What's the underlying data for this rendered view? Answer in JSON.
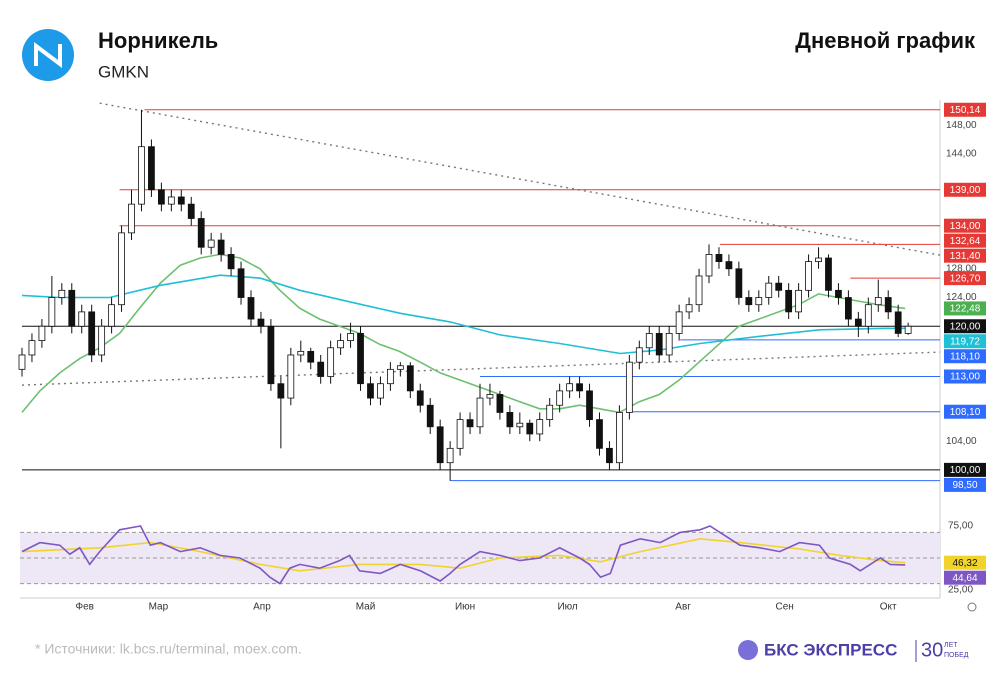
{
  "header": {
    "title": "Норникель",
    "ticker": "GMKN",
    "subtitle": "Дневной график"
  },
  "footer": {
    "source": "*  Источники: lk.bcs.ru/terminal, moex.com.",
    "brand": "БКС ЭКСПРЕСС",
    "badge_top": "ЛЕТ",
    "badge_bottom": "ПОБЕД",
    "badge_num": "30"
  },
  "chart_data": [
    {
      "type": "candlestick",
      "xlim": [
        -0.2,
        92.2
      ],
      "ylim": [
        97.2,
        151.5
      ],
      "yticks": [
        {
          "value": 148,
          "label": "148,00"
        },
        {
          "value": 144,
          "label": "144,00"
        },
        {
          "value": 128,
          "label": "128,00"
        },
        {
          "value": 124,
          "label": "124,00"
        },
        {
          "value": 104,
          "label": "104,00"
        }
      ],
      "ohlc": [
        [
          114,
          117,
          113,
          116
        ],
        [
          116,
          119,
          115,
          118
        ],
        [
          118,
          121,
          117,
          120
        ],
        [
          120,
          127,
          119,
          124
        ],
        [
          124,
          126,
          123,
          125
        ],
        [
          125,
          126,
          119,
          120
        ],
        [
          120,
          123,
          119,
          122
        ],
        [
          122,
          123,
          115,
          116
        ],
        [
          116,
          121,
          115,
          120
        ],
        [
          120,
          124,
          119,
          123
        ],
        [
          123,
          134,
          122,
          133
        ],
        [
          133,
          139,
          132,
          137
        ],
        [
          137,
          150.14,
          136,
          145
        ],
        [
          145,
          146,
          138,
          139
        ],
        [
          139,
          140,
          136,
          137
        ],
        [
          137,
          139,
          136,
          138
        ],
        [
          138,
          139,
          136,
          137
        ],
        [
          137,
          138,
          134,
          135
        ],
        [
          135,
          136,
          130,
          131
        ],
        [
          131,
          133,
          130,
          132
        ],
        [
          132,
          133,
          129,
          130
        ],
        [
          130,
          131,
          127,
          128
        ],
        [
          128,
          129,
          123,
          124
        ],
        [
          124,
          125,
          120,
          121
        ],
        [
          121,
          122,
          119,
          120
        ],
        [
          120,
          121,
          111,
          112
        ],
        [
          112,
          113,
          103,
          110
        ],
        [
          110,
          117,
          109,
          116
        ],
        [
          116,
          118,
          115,
          116.5
        ],
        [
          116.5,
          117,
          114,
          115
        ],
        [
          115,
          116,
          112,
          113
        ],
        [
          113,
          118,
          112,
          117
        ],
        [
          117,
          119,
          116,
          118
        ],
        [
          118,
          120.5,
          117,
          119
        ],
        [
          119,
          120,
          111,
          112
        ],
        [
          112,
          113,
          109,
          110
        ],
        [
          110,
          113,
          109,
          112
        ],
        [
          112,
          115,
          111,
          114
        ],
        [
          114,
          115,
          113,
          114.5
        ],
        [
          114.5,
          115,
          110,
          111
        ],
        [
          111,
          112,
          108,
          109
        ],
        [
          109,
          110,
          105,
          106
        ],
        [
          106,
          107,
          100,
          101
        ],
        [
          101,
          104,
          98.5,
          103
        ],
        [
          103,
          108,
          102,
          107
        ],
        [
          107,
          108,
          105,
          106
        ],
        [
          106,
          112,
          105,
          110
        ],
        [
          110,
          112,
          109,
          110.5
        ],
        [
          110.5,
          111,
          107,
          108
        ],
        [
          108,
          109,
          105,
          106
        ],
        [
          106,
          108,
          105,
          106.5
        ],
        [
          106.5,
          107,
          104,
          105
        ],
        [
          105,
          108,
          104,
          107
        ],
        [
          107,
          110,
          106,
          109
        ],
        [
          109,
          112,
          108,
          111
        ],
        [
          111,
          113,
          110,
          112
        ],
        [
          112,
          113,
          110,
          111
        ],
        [
          111,
          112,
          106,
          107
        ],
        [
          107,
          108,
          102,
          103
        ],
        [
          103,
          104,
          100,
          101
        ],
        [
          101,
          109,
          100,
          108
        ],
        [
          108,
          116,
          107,
          115
        ],
        [
          115,
          118,
          114,
          117
        ],
        [
          117,
          120,
          116,
          119
        ],
        [
          119,
          120,
          115,
          116
        ],
        [
          116,
          120,
          115,
          119
        ],
        [
          119,
          123,
          118,
          122
        ],
        [
          122,
          124,
          121,
          123
        ],
        [
          123,
          128,
          122,
          127
        ],
        [
          127,
          131.4,
          126,
          130
        ],
        [
          130,
          131,
          128,
          129
        ],
        [
          129,
          130,
          127,
          128
        ],
        [
          128,
          129,
          123,
          124
        ],
        [
          124,
          125,
          122,
          123
        ],
        [
          123,
          125,
          122,
          124
        ],
        [
          124,
          127,
          123,
          126
        ],
        [
          126,
          127,
          124,
          125
        ],
        [
          125,
          126,
          121,
          122
        ],
        [
          122,
          126,
          121,
          125
        ],
        [
          125,
          130,
          124,
          129
        ],
        [
          129,
          131,
          128,
          129.5
        ],
        [
          129.5,
          130,
          124,
          125
        ],
        [
          125,
          126,
          123,
          124
        ],
        [
          124,
          125,
          120,
          121
        ],
        [
          121,
          122,
          118.5,
          120
        ],
        [
          120,
          124,
          119,
          123
        ],
        [
          123,
          126.5,
          122,
          124
        ],
        [
          124,
          125,
          121,
          122
        ],
        [
          122,
          123,
          118.5,
          119
        ],
        [
          119,
          120.5,
          118.8,
          120
        ]
      ],
      "up_color": "#ffffff",
      "down_color": "#111111",
      "lines": [
        {
          "color": "#6cc070",
          "x": [
            0,
            1.8,
            3.8,
            5.8,
            7.8,
            9.8,
            11.8,
            13.9,
            15.9,
            17.9,
            19.9,
            21.9,
            23.9,
            25.9,
            27.9,
            29.9,
            31.9,
            33.9,
            35.9,
            37.9,
            40,
            42,
            44,
            46,
            48,
            50,
            52,
            54,
            56,
            58,
            60,
            62,
            64,
            66,
            68,
            70,
            72,
            74,
            76,
            78,
            80,
            82,
            84,
            86,
            88.7
          ],
          "values": [
            108,
            111,
            113.5,
            115.5,
            117,
            119,
            122.5,
            126,
            128.5,
            129.5,
            130,
            129.5,
            128,
            125,
            122.5,
            121,
            120,
            119,
            117.5,
            116.5,
            115,
            113.5,
            112.5,
            111.5,
            110.5,
            109.5,
            108.5,
            108.5,
            109,
            108.5,
            108,
            109.5,
            110.5,
            112.5,
            115,
            117.5,
            120,
            121,
            122,
            123,
            124.5,
            124,
            123.5,
            123,
            122.48
          ]
        },
        {
          "color": "#1fbfd6",
          "x": [
            0,
            3.8,
            8.8,
            13.9,
            19.9,
            23.9,
            27.9,
            32.9,
            38,
            43,
            48,
            54,
            60.1,
            64.1,
            68.1,
            74.1,
            80.1,
            86.2,
            88.7
          ],
          "values": [
            124.3,
            124,
            124,
            125.7,
            127.1,
            126.7,
            125,
            123.4,
            121.8,
            120.6,
            118.8,
            117.6,
            116.2,
            116.7,
            117.6,
            118.6,
            119.5,
            119.7,
            119.72
          ]
        }
      ],
      "trendlines": [
        {
          "x": [
            7.8,
            92.2
          ],
          "values": [
            151.06,
            129.9
          ]
        },
        {
          "x": [
            0,
            92.2
          ],
          "values": [
            111.8,
            116.4
          ]
        }
      ],
      "levels": [
        {
          "value": 150.14,
          "label": "150,14",
          "color": "#e53935",
          "from": 12.3
        },
        {
          "value": 139,
          "label": "139,00",
          "color": "#e53935",
          "from": 9.8
        },
        {
          "value": 134,
          "label": "134,00",
          "color": "#e53935",
          "from": 9.8
        },
        {
          "value": 132.64,
          "label": "132,64",
          "color": "#e53935"
        },
        {
          "value": 131.4,
          "label": "131,40",
          "color": "#e53935",
          "from": 70.1
        },
        {
          "value": 126.7,
          "label": "126,70",
          "color": "#e53935",
          "from": 83.2
        },
        {
          "value": 122.48,
          "label": "122,48",
          "color": "#4caf50"
        },
        {
          "value": 120,
          "label": "120,00",
          "color": "#111111",
          "from": 0
        },
        {
          "value": 119.72,
          "label": "119,72",
          "color": "#1fbfd6"
        },
        {
          "value": 118.1,
          "label": "118,10",
          "color": "#2f6bff",
          "from": 66.1
        },
        {
          "value": 113,
          "label": "113,00",
          "color": "#2f6bff",
          "from": 46
        },
        {
          "value": 108.1,
          "label": "108,10",
          "color": "#2f6bff",
          "from": 61.1
        },
        {
          "value": 100,
          "label": "100,00",
          "color": "#111111",
          "from": 0
        },
        {
          "value": 98.5,
          "label": "98,50",
          "color": "#2f6bff",
          "from": 43
        }
      ]
    },
    {
      "type": "line",
      "xlim": [
        -0.2,
        92.2
      ],
      "ylim": [
        18.75,
        87.5
      ],
      "yticks": [
        {
          "value": 75,
          "label": "75,00"
        },
        {
          "value": 25,
          "label": "25,00"
        }
      ],
      "band": [
        30,
        70
      ],
      "guides": [
        70,
        50,
        30
      ],
      "xticks": [
        {
          "value": 6.3,
          "label": "Фев"
        },
        {
          "value": 13.7,
          "label": "Мар"
        },
        {
          "value": 24.1,
          "label": "Апр"
        },
        {
          "value": 34.5,
          "label": "Май"
        },
        {
          "value": 44.5,
          "label": "Июн"
        },
        {
          "value": 54.8,
          "label": "Июл"
        },
        {
          "value": 66.4,
          "label": "Авг"
        },
        {
          "value": 76.6,
          "label": "Сен"
        },
        {
          "value": 87,
          "label": "Окт"
        }
      ],
      "series": [
        {
          "color": "#7e57c2",
          "value_label": "44,64",
          "x": [
            0,
            1.8,
            3.8,
            4.8,
            5.8,
            6.8,
            7.8,
            9.8,
            11.9,
            12.9,
            13.9,
            15.9,
            17.9,
            19.9,
            21.9,
            23.9,
            24.9,
            25.9,
            26.9,
            27.9,
            29.9,
            31.9,
            32.9,
            33.9,
            36,
            38,
            40,
            42,
            43,
            44,
            46,
            48,
            50,
            52,
            54,
            56,
            57,
            58.1,
            59.1,
            60.1,
            62.1,
            64.1,
            66.1,
            68.1,
            69.1,
            70.1,
            72.1,
            74.1,
            76.1,
            78.1,
            80.1,
            81.1,
            83.2,
            84.2,
            86.2,
            87.2,
            88.7
          ],
          "values": [
            55,
            62,
            60,
            53,
            58,
            45,
            55,
            72,
            75,
            60,
            62,
            55,
            58,
            52,
            50,
            42,
            35,
            30,
            42,
            45,
            42,
            48,
            52,
            40,
            38,
            45,
            40,
            32,
            38,
            45,
            55,
            52,
            48,
            50,
            58,
            50,
            45,
            35,
            38,
            60,
            65,
            62,
            70,
            72,
            75,
            70,
            60,
            58,
            55,
            62,
            60,
            50,
            45,
            40,
            50,
            45,
            44.64
          ]
        },
        {
          "color": "#f2d32b",
          "value_label": "46,32",
          "x": [
            0,
            7.8,
            12.9,
            17.9,
            23.9,
            27.9,
            33.9,
            40,
            44,
            48,
            54,
            58.1,
            62.1,
            68.1,
            72.1,
            78.1,
            82.2,
            86.2,
            88.7
          ],
          "values": [
            55,
            58,
            62,
            55,
            45,
            40,
            45,
            45,
            42,
            50,
            52,
            47,
            55,
            65,
            62,
            57,
            52,
            48,
            46.32
          ]
        }
      ]
    }
  ]
}
